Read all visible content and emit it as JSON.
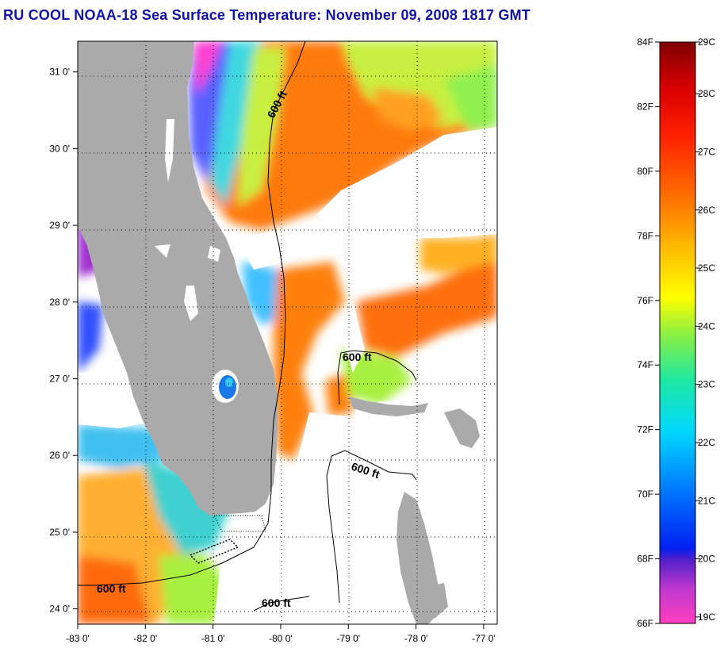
{
  "title": "RU COOL  NOAA-18  Sea Surface Temperature:  November 09, 2008 1817 GMT",
  "colors": {
    "title": "#1212a8",
    "land": "#aaaaaa",
    "cloud": "#ffffff"
  },
  "map": {
    "lon_range": [
      -83.0,
      -76.8
    ],
    "lat_range": [
      23.8,
      31.4
    ],
    "lon_ticks": [
      {
        "value": -83,
        "label": "-83 0'"
      },
      {
        "value": -82,
        "label": "-82 0'"
      },
      {
        "value": -81,
        "label": "-81 0'"
      },
      {
        "value": -80,
        "label": "-80 0'"
      },
      {
        "value": -79,
        "label": "-79 0'"
      },
      {
        "value": -78,
        "label": "-78 0'"
      },
      {
        "value": -77,
        "label": "-77 0'"
      }
    ],
    "lat_ticks": [
      {
        "value": 31,
        "label": "31 0'"
      },
      {
        "value": 30,
        "label": "30 0'"
      },
      {
        "value": 29,
        "label": "29 0'"
      },
      {
        "value": 28,
        "label": "28 0'"
      },
      {
        "value": 27,
        "label": "27 0'"
      },
      {
        "value": 26,
        "label": "26 0'"
      },
      {
        "value": 25,
        "label": "25 0'"
      },
      {
        "value": 24,
        "label": "24 0'"
      }
    ],
    "contour_labels": [
      "600 ft",
      "600 ft",
      "600 ft",
      "600 ft",
      "600 ft"
    ]
  },
  "colorbar": {
    "fahrenheit": [
      {
        "value": 84,
        "label": "84F"
      },
      {
        "value": 82,
        "label": "82F"
      },
      {
        "value": 80,
        "label": "80F"
      },
      {
        "value": 78,
        "label": "78F"
      },
      {
        "value": 76,
        "label": "76F"
      },
      {
        "value": 74,
        "label": "74F"
      },
      {
        "value": 72,
        "label": "72F"
      },
      {
        "value": 70,
        "label": "70F"
      },
      {
        "value": 68,
        "label": "68F"
      },
      {
        "value": 66,
        "label": "66F"
      }
    ],
    "celsius": [
      {
        "value": 29,
        "label": "29C"
      },
      {
        "value": 28,
        "label": "28C"
      },
      {
        "value": 27,
        "label": "27C"
      },
      {
        "value": 26,
        "label": "26C"
      },
      {
        "value": 25,
        "label": "25C"
      },
      {
        "value": 24,
        "label": "24C"
      },
      {
        "value": 23,
        "label": "23C"
      },
      {
        "value": 22,
        "label": "22C"
      },
      {
        "value": 21,
        "label": "21C"
      },
      {
        "value": 20,
        "label": "20C"
      },
      {
        "value": 19,
        "label": "19C"
      }
    ],
    "stops": [
      "#ff3fbf",
      "#b030d8",
      "#3a1ad0",
      "#0050ff",
      "#00a0ff",
      "#00e8e8",
      "#30e080",
      "#a8f030",
      "#ffff00",
      "#ffc000",
      "#ff7a00",
      "#ff2000",
      "#e00000",
      "#800000"
    ]
  }
}
